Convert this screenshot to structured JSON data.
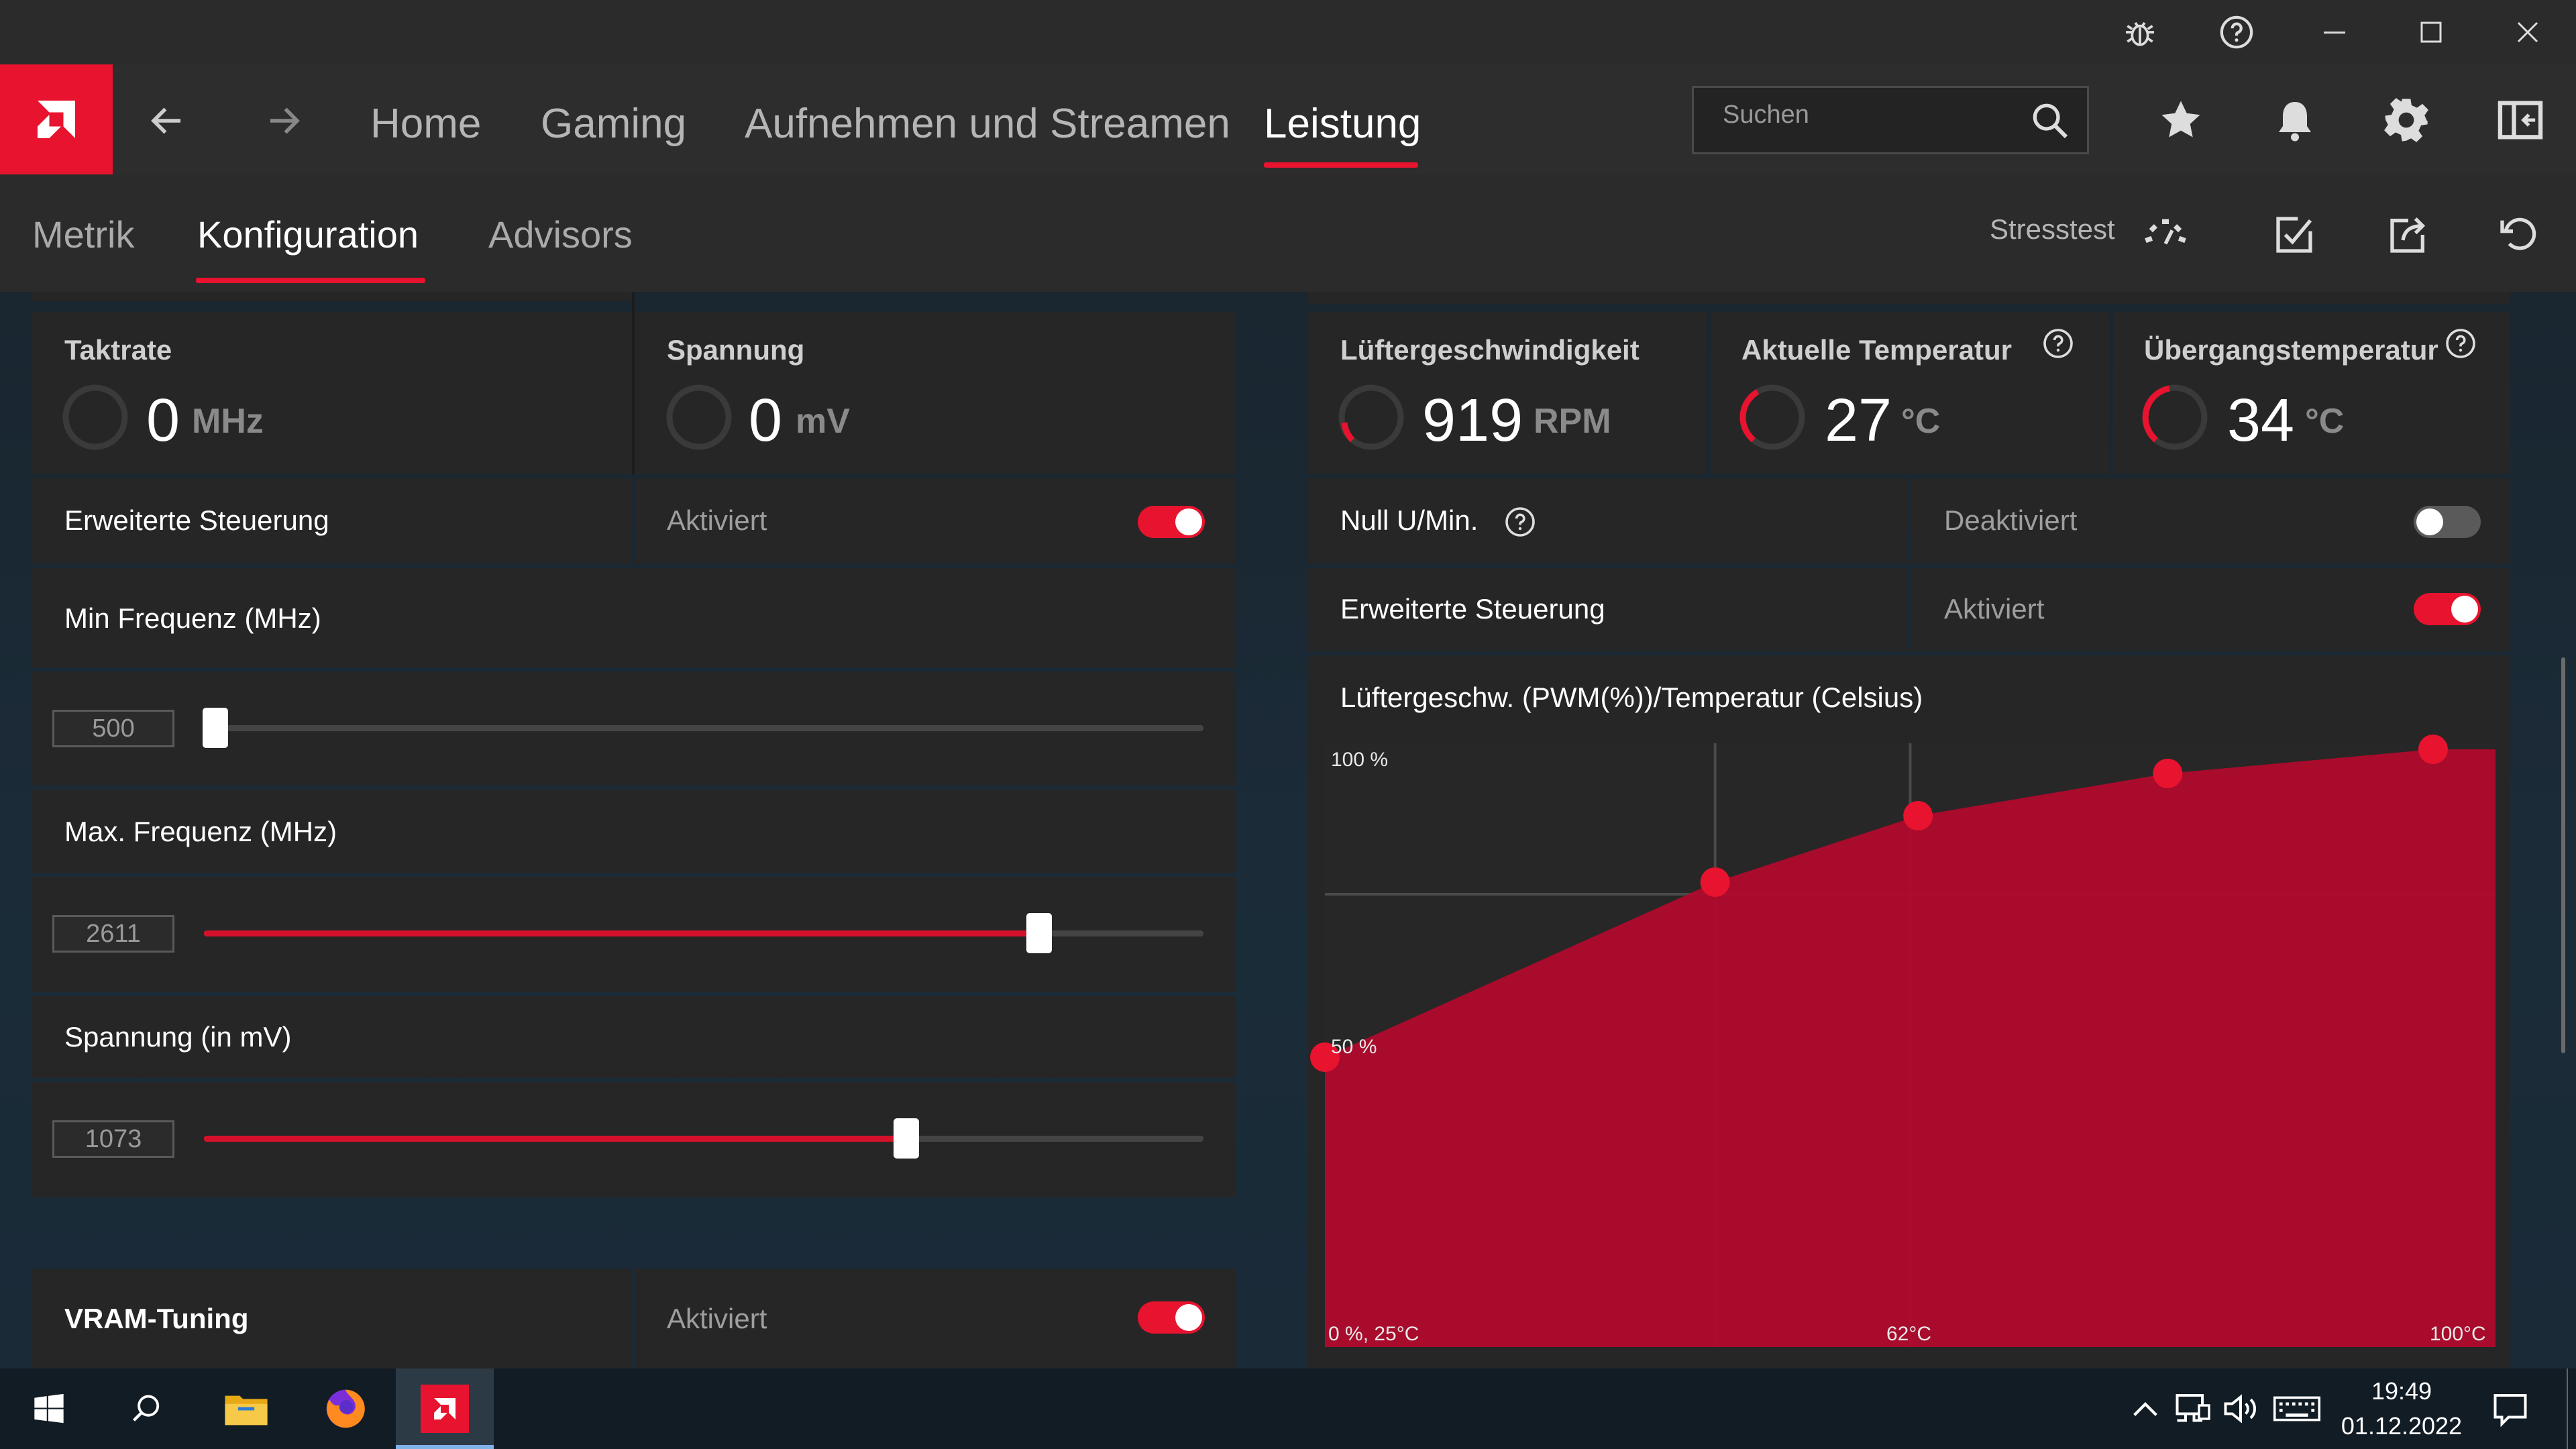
{
  "window": {
    "buttons": [
      "bug-icon",
      "help-icon",
      "minimize-icon",
      "maximize-icon",
      "close-icon"
    ]
  },
  "header": {
    "nav_tabs": [
      {
        "label": "Home"
      },
      {
        "label": "Gaming"
      },
      {
        "label": "Aufnehmen und Streamen"
      },
      {
        "label": "Leistung",
        "active": true
      }
    ],
    "search_placeholder": "Suchen",
    "icons": [
      "star-icon",
      "bell-icon",
      "gear-icon",
      "panel-icon"
    ]
  },
  "subnav": {
    "tabs": [
      {
        "label": "Metrik"
      },
      {
        "label": "Konfiguration",
        "active": true
      },
      {
        "label": "Advisors"
      }
    ],
    "stresstest_label": "Stresstest"
  },
  "gpu": {
    "clock": {
      "label": "Taktrate",
      "value": "0",
      "unit": "MHz"
    },
    "voltage": {
      "label": "Spannung",
      "value": "0",
      "unit": "mV"
    },
    "advanced": {
      "label": "Erweiterte Steuerung",
      "state": "Aktiviert",
      "on": true
    },
    "min_freq": {
      "label": "Min Frequenz (MHz)",
      "value": "500",
      "slider_pct": 0.01
    },
    "max_freq": {
      "label": "Max. Frequenz (MHz)",
      "value": "2611",
      "slider_pct": 0.835
    },
    "voltage_ctrl": {
      "label": "Spannung (in mV)",
      "value": "1073",
      "slider_pct": 0.7
    },
    "vram": {
      "label": "VRAM-Tuning",
      "state": "Aktiviert",
      "on": true
    }
  },
  "fan": {
    "speed": {
      "label": "Lüftergeschwindigkeit",
      "value": "919",
      "unit": "RPM"
    },
    "temp": {
      "label": "Aktuelle Temperatur",
      "value": "27",
      "unit": "°C"
    },
    "junction": {
      "label": "Übergangstemperatur",
      "value": "34",
      "unit": "°C"
    },
    "zero_rpm": {
      "label": "Null U/Min.",
      "state": "Deaktiviert",
      "on": false
    },
    "advanced": {
      "label": "Erweiterte Steuerung",
      "state": "Aktiviert",
      "on": true
    },
    "curve_title": "Lüftergeschw. (PWM(%))/Temperatur (Celsius)",
    "chart_labels": {
      "y_top": "100 %",
      "y_mid": "50 %",
      "origin": "0 %, 25°C",
      "x_mid": "62°C",
      "x_max": "100°C"
    }
  },
  "chart_data": {
    "type": "area",
    "x": [
      25,
      50,
      63,
      79,
      96
    ],
    "values": [
      48,
      77,
      88,
      95,
      99
    ],
    "xlabel": "",
    "ylabel": "",
    "xlim": [
      25,
      100
    ],
    "ylim": [
      0,
      100
    ],
    "color": "#b00a2c",
    "grid": true
  },
  "taskbar": {
    "time": "19:49",
    "date": "01.12.2022",
    "apps": [
      "windows-start-icon",
      "search-icon",
      "file-explorer-icon",
      "firefox-icon",
      "amd-software-icon"
    ]
  },
  "colors": {
    "accent": "#e8132e"
  }
}
